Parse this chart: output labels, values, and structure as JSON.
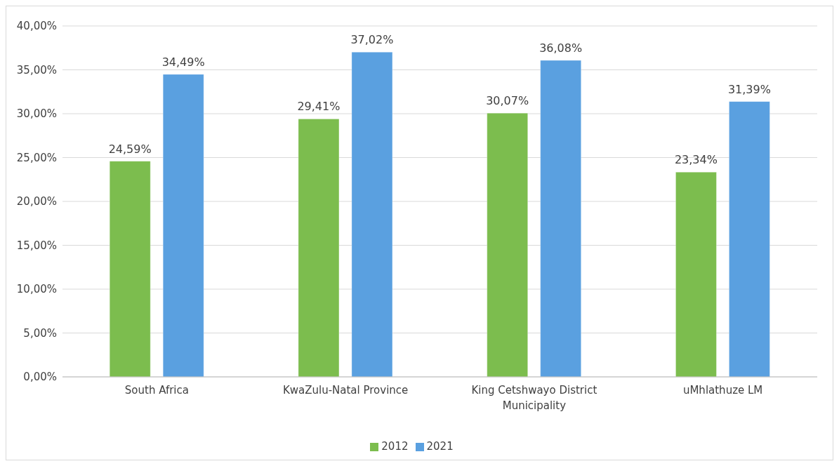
{
  "chart_data": {
    "type": "bar",
    "categories": [
      "South Africa",
      "KwaZulu-Natal Province",
      "King Cetshwayo District Municipality",
      "uMhlathuze LM"
    ],
    "series": [
      {
        "name": "2012",
        "color": "#7cbd4e",
        "values": [
          24.59,
          29.41,
          30.07,
          23.34
        ],
        "value_labels": [
          "24,59%",
          "29,41%",
          "30,07%",
          "23,34%"
        ]
      },
      {
        "name": "2021",
        "color": "#5aa0e0",
        "values": [
          34.49,
          37.02,
          36.08,
          31.39
        ],
        "value_labels": [
          "34,49%",
          "37,02%",
          "36,08%",
          "31,39%"
        ]
      }
    ],
    "ylim": [
      0,
      40
    ],
    "yticks": [
      {
        "value": 0,
        "label": "0,00%"
      },
      {
        "value": 5,
        "label": "5,00%"
      },
      {
        "value": 10,
        "label": "10,00%"
      },
      {
        "value": 15,
        "label": "15,00%"
      },
      {
        "value": 20,
        "label": "20,00%"
      },
      {
        "value": 25,
        "label": "25,00%"
      },
      {
        "value": 30,
        "label": "30,00%"
      },
      {
        "value": 35,
        "label": "35,00%"
      },
      {
        "value": 40,
        "label": "40,00%"
      }
    ],
    "grid": "y",
    "legend": "bottom"
  }
}
